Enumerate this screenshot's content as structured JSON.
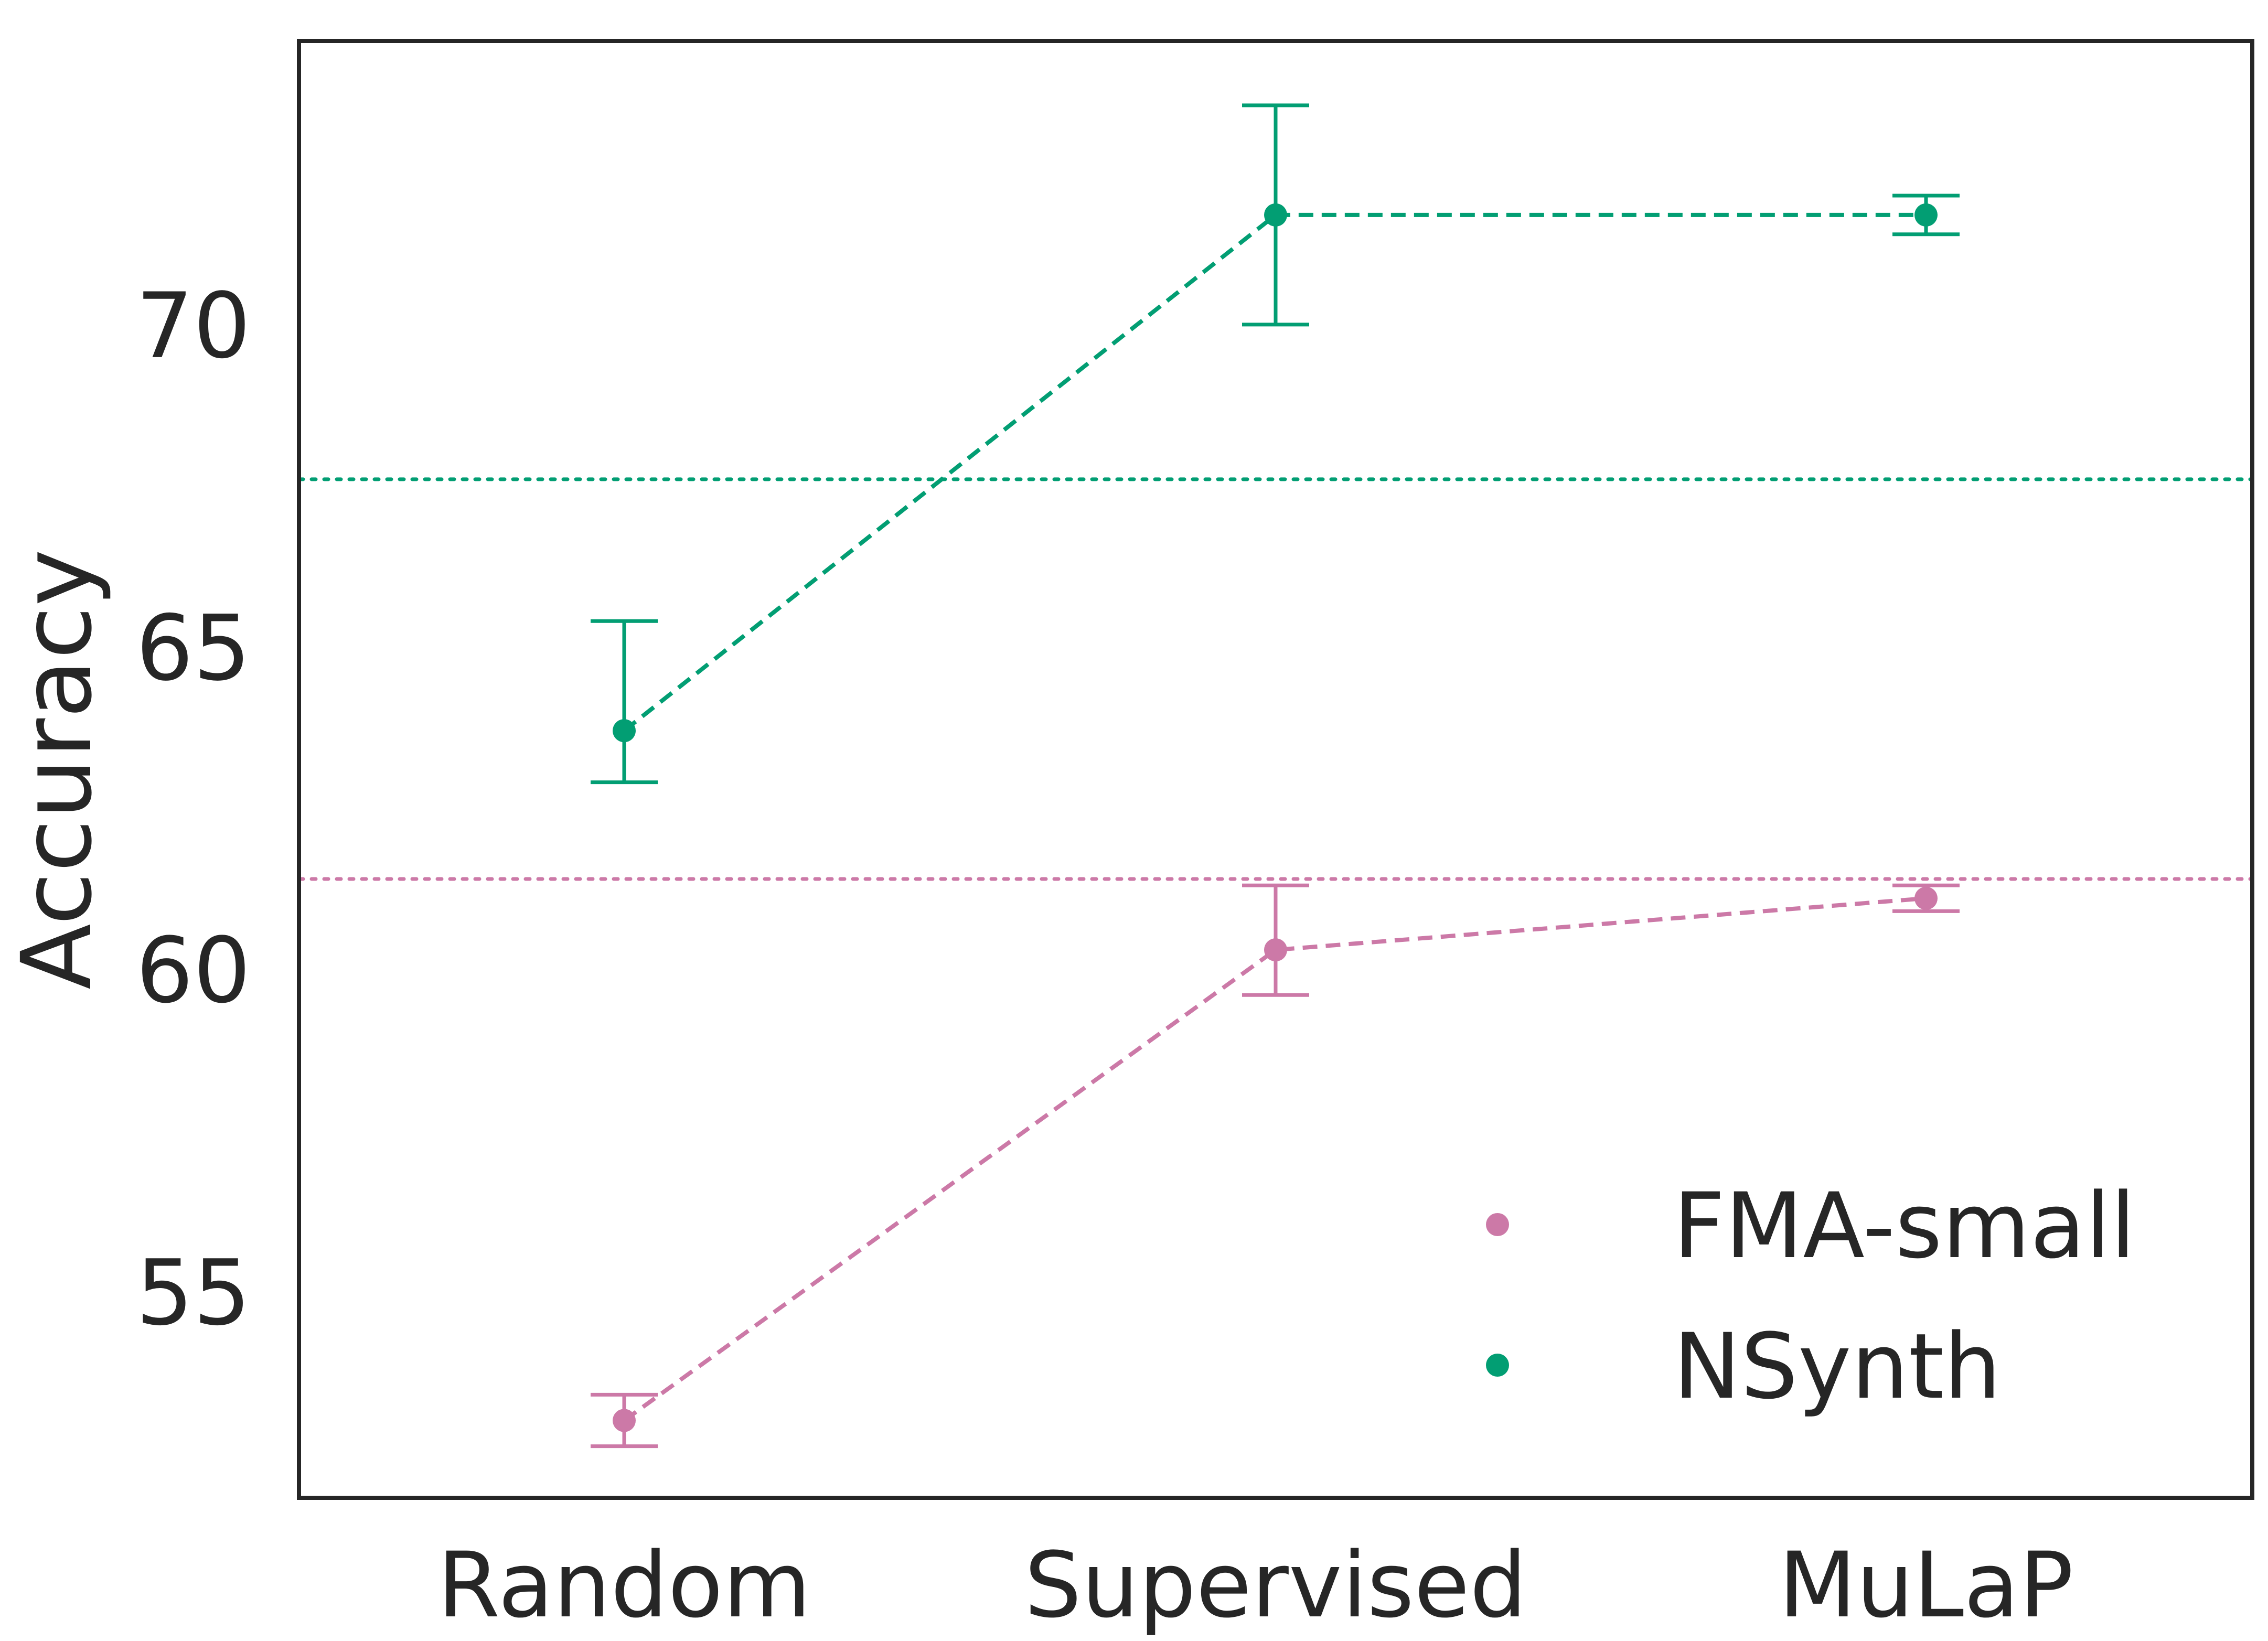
{
  "chart_data": {
    "type": "line",
    "title": "",
    "xlabel": "",
    "ylabel": "Accuracy",
    "categories": [
      "Random",
      "Supervised",
      "MuLaP"
    ],
    "ylim": [
      51.8,
      74.4
    ],
    "yticks": [
      55,
      60,
      65,
      70
    ],
    "ytick_labels": [
      "55",
      "60",
      "65",
      "70"
    ],
    "grid": false,
    "legend_position": "bottom-right",
    "series": [
      {
        "name": "FMA-small",
        "color": "#cc79a7",
        "values": [
          53.0,
          60.3,
          61.1
        ],
        "error_low": [
          52.6,
          59.6,
          60.9
        ],
        "error_high": [
          53.4,
          61.3,
          61.3
        ],
        "baseline": 61.4
      },
      {
        "name": "NSynth",
        "color": "#029e73",
        "values": [
          63.7,
          71.7,
          71.7
        ],
        "error_low": [
          62.9,
          70.0,
          71.4
        ],
        "error_high": [
          65.4,
          73.4,
          72.0
        ],
        "baseline": 67.6
      }
    ]
  }
}
